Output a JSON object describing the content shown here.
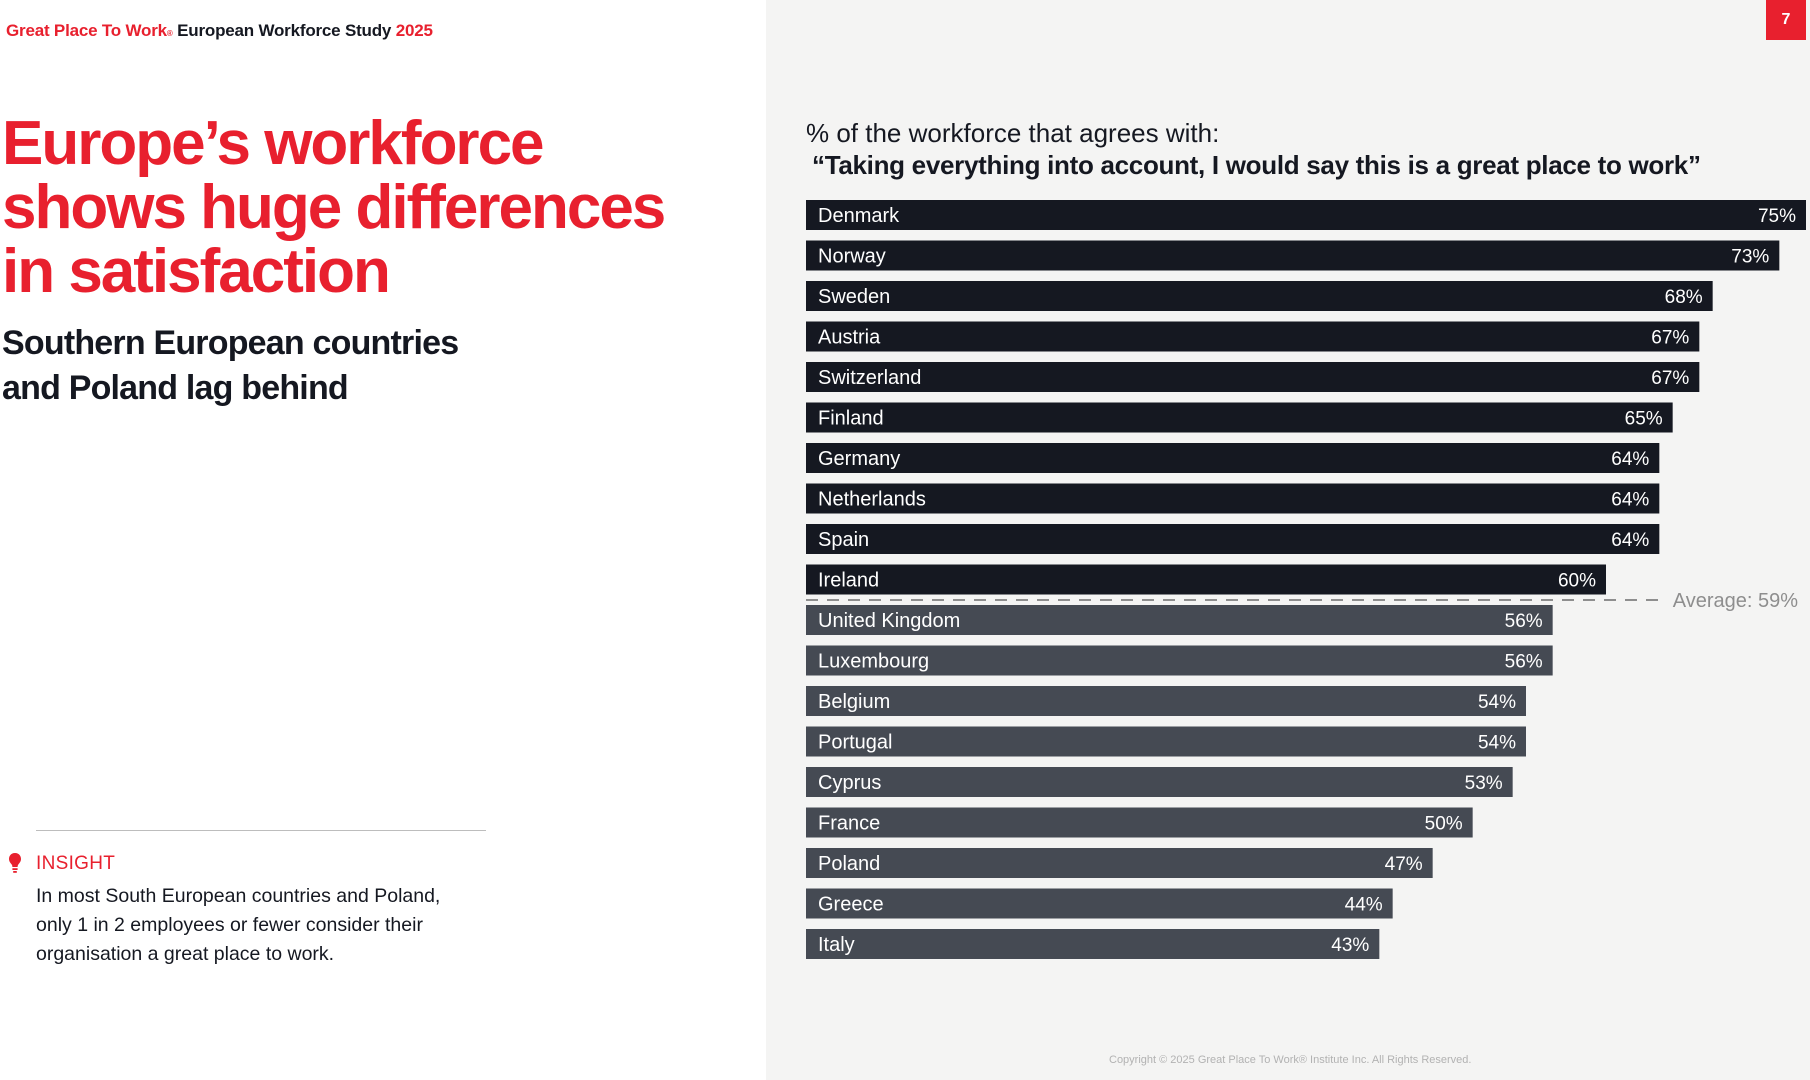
{
  "header": {
    "brand": "Great Place To Work",
    "brand_mark": "®",
    "study": "European Workforce Study",
    "year": "2025"
  },
  "page_number": "7",
  "headline": {
    "line1": "Europe’s workforce",
    "line2": "shows huge differences",
    "line3": "in satisfaction"
  },
  "subheadline": {
    "line1": "Southern European countries",
    "line2": "and Poland lag behind"
  },
  "insight": {
    "icon": "lightbulb-icon",
    "label": "INSIGHT",
    "line1": "In most South European countries and Poland,",
    "line2": "only 1 in 2 employees or fewer consider their",
    "line3": "organisation a great place to work."
  },
  "colors": {
    "brand_red": "#e8202e",
    "above_average_bar": "#151821",
    "below_average_bar": "#454a53",
    "panel_background": "#f4f4f3",
    "average_line": "#8e8e8e"
  },
  "chart_data": {
    "type": "bar",
    "orientation": "horizontal",
    "title": "% of the workforce that agrees with:",
    "subtitle": "“Taking everything into account, I would say this is a great place to work”",
    "categories": [
      "Denmark",
      "Norway",
      "Sweden",
      "Austria",
      "Switzerland",
      "Finland",
      "Germany",
      "Netherlands",
      "Spain",
      "Ireland",
      "United Kingdom",
      "Luxembourg",
      "Belgium",
      "Portugal",
      "Cyprus",
      "France",
      "Poland",
      "Greece",
      "Italy"
    ],
    "values": [
      75,
      73,
      68,
      67,
      67,
      65,
      64,
      64,
      64,
      60,
      56,
      56,
      54,
      54,
      53,
      50,
      47,
      44,
      43
    ],
    "value_labels": [
      "75%",
      "73%",
      "68%",
      "67%",
      "67%",
      "65%",
      "64%",
      "64%",
      "64%",
      "60%",
      "56%",
      "56%",
      "54%",
      "54%",
      "53%",
      "50%",
      "47%",
      "44%",
      "43%"
    ],
    "unit": "%",
    "xlim": [
      0,
      75
    ],
    "average": 59,
    "average_label": "Average: 59%",
    "grid": false,
    "legend": "none"
  },
  "footer": {
    "copyright": "Copyright © 2025 Great Place To Work® Institute Inc. All Rights Reserved."
  }
}
